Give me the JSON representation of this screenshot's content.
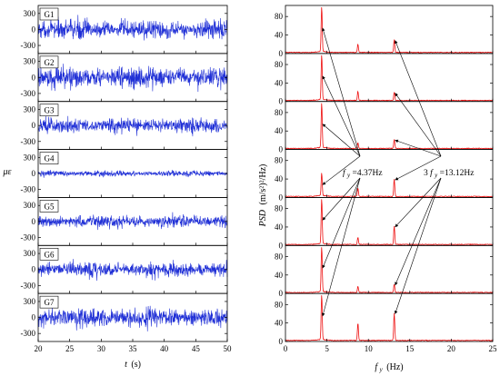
{
  "chart_data": [
    {
      "type": "line",
      "subtype": "time-series-stack",
      "xlabel": "t (s)",
      "xlabel_italic": "t",
      "xlabel_unit": "(s)",
      "ylabel": "με",
      "xlim": [
        20,
        50
      ],
      "ylim": [
        -450,
        450
      ],
      "x_ticks": [
        "20",
        "25",
        "30",
        "35",
        "40",
        "45",
        "50"
      ],
      "y_ticks": [
        "300",
        "0",
        "-300"
      ],
      "y_tick_values": [
        300,
        0,
        -300
      ],
      "color": "#1f2fd6",
      "series": [
        {
          "name": "G1",
          "amplitude": 300
        },
        {
          "name": "G2",
          "amplitude": 320
        },
        {
          "name": "G3",
          "amplitude": 230
        },
        {
          "name": "G4",
          "amplitude": 90
        },
        {
          "name": "G5",
          "amplitude": 190
        },
        {
          "name": "G6",
          "amplitude": 230
        },
        {
          "name": "G7",
          "amplitude": 290
        }
      ]
    },
    {
      "type": "line",
      "subtype": "spectrum-stack",
      "xlabel": "f_y (Hz)",
      "xlabel_italic": "f",
      "xlabel_sub": "y",
      "xlabel_unit": "(Hz)",
      "ylabel": "PSD ((m/s²)²/Hz)",
      "ylabel_italic": "PSD",
      "ylabel_unit": "(m/s²)²/Hz)",
      "xlim": [
        0,
        25
      ],
      "ylim": [
        0,
        100
      ],
      "x_ticks": [
        "0",
        "5",
        "10",
        "15",
        "20",
        "25"
      ],
      "y_ticks": [
        "0",
        "40",
        "80"
      ],
      "y_tick_values": [
        0,
        40,
        80
      ],
      "color": "#ee1111",
      "panels": [
        {
          "peaks": [
            {
              "f": 4.37,
              "v": 100
            },
            {
              "f": 8.74,
              "v": 18
            },
            {
              "f": 13.12,
              "v": 28
            }
          ]
        },
        {
          "peaks": [
            {
              "f": 4.37,
              "v": 100
            },
            {
              "f": 8.74,
              "v": 20
            },
            {
              "f": 13.12,
              "v": 18
            }
          ]
        },
        {
          "peaks": [
            {
              "f": 4.37,
              "v": 100
            },
            {
              "f": 8.74,
              "v": 12
            },
            {
              "f": 13.12,
              "v": 20
            }
          ]
        },
        {
          "peaks": [
            {
              "f": 4.37,
              "v": 50
            },
            {
              "f": 8.74,
              "v": 18
            },
            {
              "f": 13.12,
              "v": 38
            }
          ]
        },
        {
          "peaks": [
            {
              "f": 4.37,
              "v": 100
            },
            {
              "f": 8.74,
              "v": 16
            },
            {
              "f": 13.12,
              "v": 40
            }
          ]
        },
        {
          "peaks": [
            {
              "f": 4.37,
              "v": 100
            },
            {
              "f": 8.74,
              "v": 14
            },
            {
              "f": 13.12,
              "v": 18
            }
          ]
        },
        {
          "peaks": [
            {
              "f": 4.37,
              "v": 100
            },
            {
              "f": 8.74,
              "v": 38
            },
            {
              "f": 13.12,
              "v": 60
            }
          ]
        }
      ],
      "annotations": [
        {
          "id": "fy",
          "text_italic": "f",
          "text_sub": "y",
          "text_value": "=4.37Hz"
        },
        {
          "id": "3fy",
          "text_prefix": "3",
          "text_italic": "f",
          "text_sub": "y",
          "text_value": "=13.12Hz"
        }
      ]
    }
  ]
}
